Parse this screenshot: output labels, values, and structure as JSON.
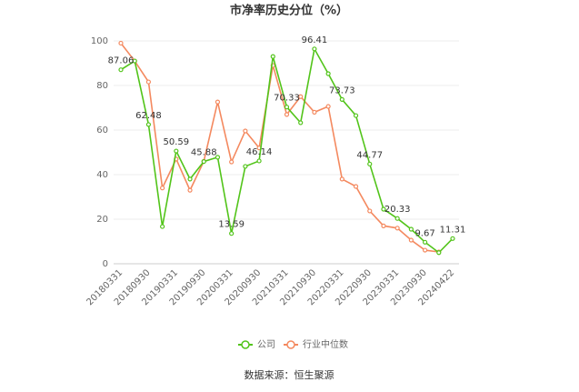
{
  "chart_data": {
    "type": "line",
    "title": "市净率历史分位（%）",
    "source": "数据来源：恒生聚源",
    "categories": [
      "20180331",
      null,
      "20180930",
      null,
      "20190331",
      null,
      "20190930",
      null,
      "20200331",
      null,
      "20200930",
      null,
      "20210331",
      null,
      "20210930",
      null,
      "20220331",
      null,
      "20220930",
      null,
      "20230331",
      null,
      "20230930",
      null,
      "20240422"
    ],
    "series": [
      {
        "name": "公司",
        "color": "#52c41a",
        "values": [
          87.06,
          91,
          62.48,
          16.7,
          50.59,
          38,
          45.88,
          47.8,
          13.59,
          43.7,
          46.14,
          93,
          70.33,
          63.3,
          96.41,
          85.3,
          73.73,
          66.5,
          44.77,
          24.5,
          20.33,
          15.5,
          9.67,
          5,
          11.31
        ],
        "value_labels": [
          "87.06",
          null,
          "62.48",
          null,
          "50.59",
          null,
          "45.88",
          null,
          "13.59",
          null,
          "46.14",
          null,
          "70.33",
          null,
          "96.41",
          null,
          "73.73",
          null,
          "44.77",
          null,
          "20.33",
          null,
          "9.67",
          null,
          "11.31"
        ]
      },
      {
        "name": "行业中位数",
        "color": "#f4895f",
        "values": [
          99,
          91,
          81.6,
          34,
          47,
          33,
          46,
          72.6,
          45.7,
          59.6,
          52,
          89,
          67,
          75,
          68,
          70.6,
          38,
          34.7,
          23.7,
          17,
          16,
          10.6,
          6.1,
          5.3,
          null
        ]
      }
    ],
    "ylim": [
      0,
      100
    ],
    "yticks": [
      0,
      20,
      40,
      60,
      80,
      100
    ],
    "grid": true
  }
}
